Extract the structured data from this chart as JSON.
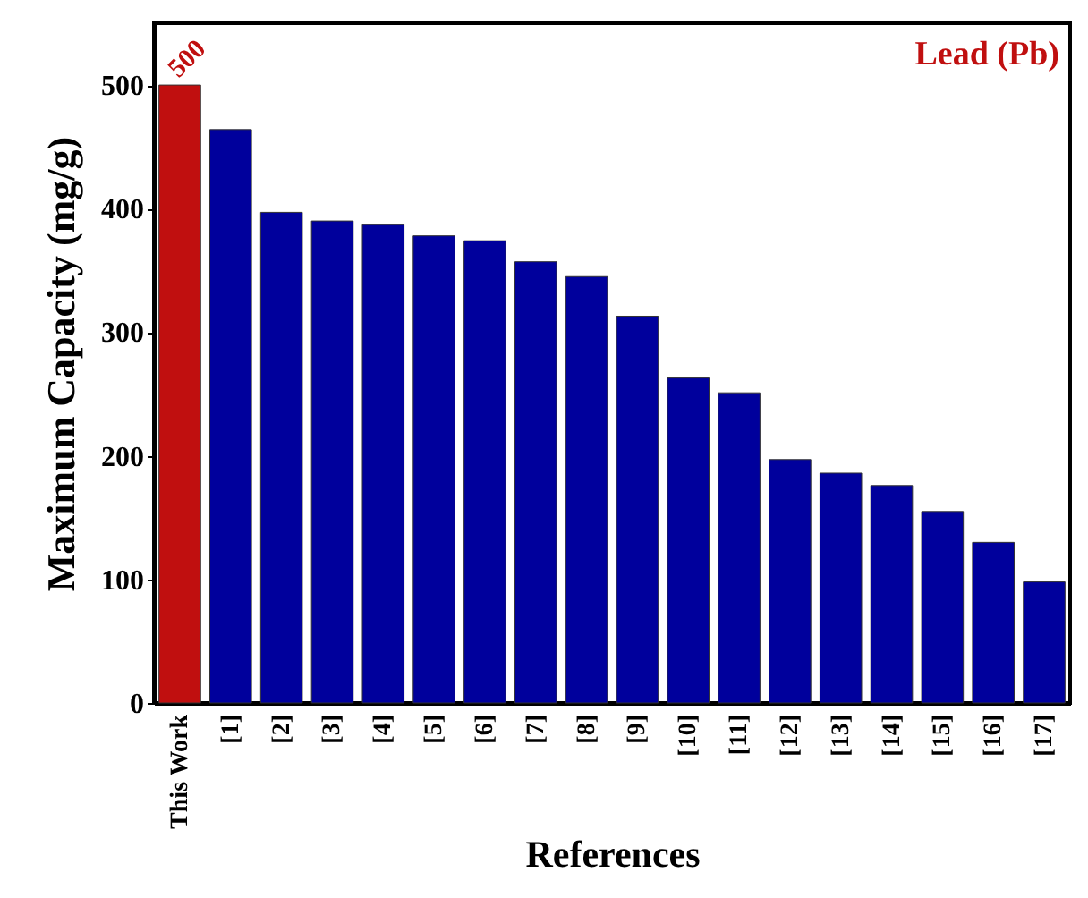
{
  "chart_data": {
    "type": "bar",
    "xlabel": "References",
    "ylabel": "Maximum Capacity (mg/g)",
    "categories": [
      "This Work",
      "[1]",
      "[2]",
      "[3]",
      "[4]",
      "[5]",
      "[6]",
      "[7]",
      "[8]",
      "[9]",
      "[10]",
      "[11]",
      "[12]",
      "[13]",
      "[14]",
      "[15]",
      "[16]",
      "[17]"
    ],
    "values": [
      500,
      464,
      397,
      390,
      387,
      378,
      374,
      357,
      345,
      313,
      263,
      251,
      197,
      186,
      176,
      155,
      130,
      98
    ],
    "colors": [
      "#c00f0f",
      "#00009c",
      "#00009c",
      "#00009c",
      "#00009c",
      "#00009c",
      "#00009c",
      "#00009c",
      "#00009c",
      "#00009c",
      "#00009c",
      "#00009c",
      "#00009c",
      "#00009c",
      "#00009c",
      "#00009c",
      "#00009c",
      "#00009c"
    ],
    "value_labels": [
      "500",
      null,
      null,
      null,
      null,
      null,
      null,
      null,
      null,
      null,
      null,
      null,
      null,
      null,
      null,
      null,
      null,
      null
    ],
    "annotations": [
      "Lead (Pb)"
    ],
    "ylim": [
      0,
      550
    ],
    "yticks": [
      0,
      100,
      200,
      300,
      400,
      500
    ],
    "grid": false
  }
}
